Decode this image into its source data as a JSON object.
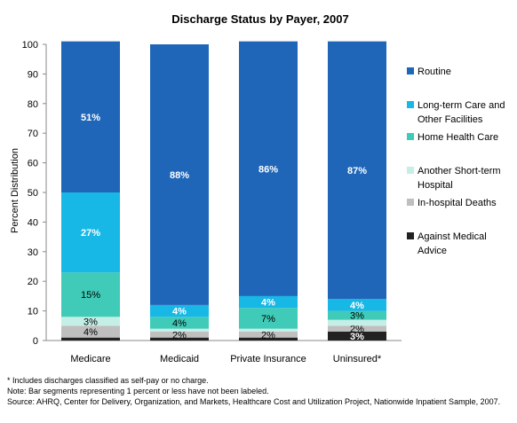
{
  "chart_data": {
    "type": "bar",
    "stacked": true,
    "title": "Discharge Status by Payer, 2007",
    "ylabel": "Percent Distribution",
    "xlabel": "",
    "ylim": [
      0,
      100
    ],
    "yticks": [
      0,
      10,
      20,
      30,
      40,
      50,
      60,
      70,
      80,
      90,
      100
    ],
    "grid": false,
    "legend_position": "right",
    "categories": [
      "Medicare",
      "Medicaid",
      "Private Insurance",
      "Uninsured*"
    ],
    "series": [
      {
        "name": "Against Medical Advice",
        "color": "#222222",
        "values": [
          1,
          1,
          1,
          3
        ],
        "labels": [
          "",
          "",
          "",
          "3%"
        ]
      },
      {
        "name": "In-hospital Deaths",
        "color": "#bfbfbf",
        "values": [
          4,
          2,
          2,
          2
        ],
        "labels": [
          "4%",
          "2%",
          "2%",
          "2%"
        ]
      },
      {
        "name": "Another Short-term Hospital",
        "color": "#c5efe6",
        "values": [
          3,
          1,
          1,
          2
        ],
        "labels": [
          "3%",
          "",
          "",
          ""
        ]
      },
      {
        "name": "Home Health Care",
        "color": "#3fcbb8",
        "values": [
          15,
          4,
          7,
          3
        ],
        "labels": [
          "15%",
          "4%",
          "7%",
          "3%"
        ]
      },
      {
        "name": "Long-term Care and Other Facilities",
        "color": "#17b7e6",
        "values": [
          27,
          4,
          4,
          4
        ],
        "labels": [
          "27%",
          "4%",
          "4%",
          "4%"
        ]
      },
      {
        "name": "Routine",
        "color": "#1f66b8",
        "values": [
          51,
          88,
          86,
          87
        ],
        "labels": [
          "51%",
          "88%",
          "86%",
          "87%"
        ]
      }
    ],
    "legend_lines": [
      {
        "series": "Routine",
        "lines": [
          "Routine"
        ]
      },
      {
        "series": "Long-term Care and Other Facilities",
        "lines": [
          "Long-term Care and",
          "Other Facilities"
        ]
      },
      {
        "series": "Home Health Care",
        "lines": [
          "Home Health Care"
        ]
      },
      {
        "series": "Another Short-term Hospital",
        "lines": [
          "Another Short-term",
          "Hospital"
        ]
      },
      {
        "series": "In-hospital Deaths",
        "lines": [
          "In-hospital Deaths"
        ]
      },
      {
        "series": "Against Medical Advice",
        "lines": [
          "Against Medical",
          "Advice"
        ]
      }
    ]
  },
  "notes": {
    "footnote": "* Includes discharges classified as self-pay or no charge.",
    "note": "Note: Bar segments representing 1 percent or less have not been labeled.",
    "source": "Source: AHRQ, Center for Delivery, Organization, and Markets, Healthcare Cost and Utilization Project, Nationwide Inpatient Sample, 2007."
  }
}
